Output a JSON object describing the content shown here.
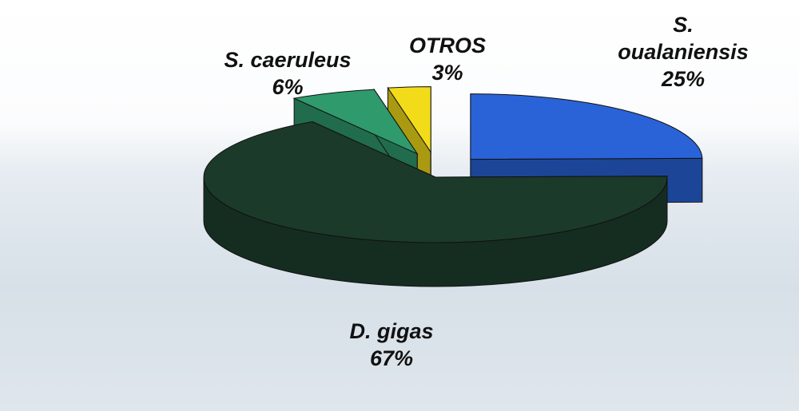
{
  "chart_data": {
    "type": "pie3d",
    "categories": [
      "S. oualaniensis",
      "D. gigas",
      "S. caeruleus",
      "OTROS"
    ],
    "values": [
      25,
      67,
      6,
      3
    ],
    "value_labels": [
      "25%",
      "67%",
      "6%",
      "3%"
    ],
    "colors": [
      "#2a63d8",
      "#1b3a2a",
      "#2f9a6c",
      "#f2dc1a"
    ]
  }
}
